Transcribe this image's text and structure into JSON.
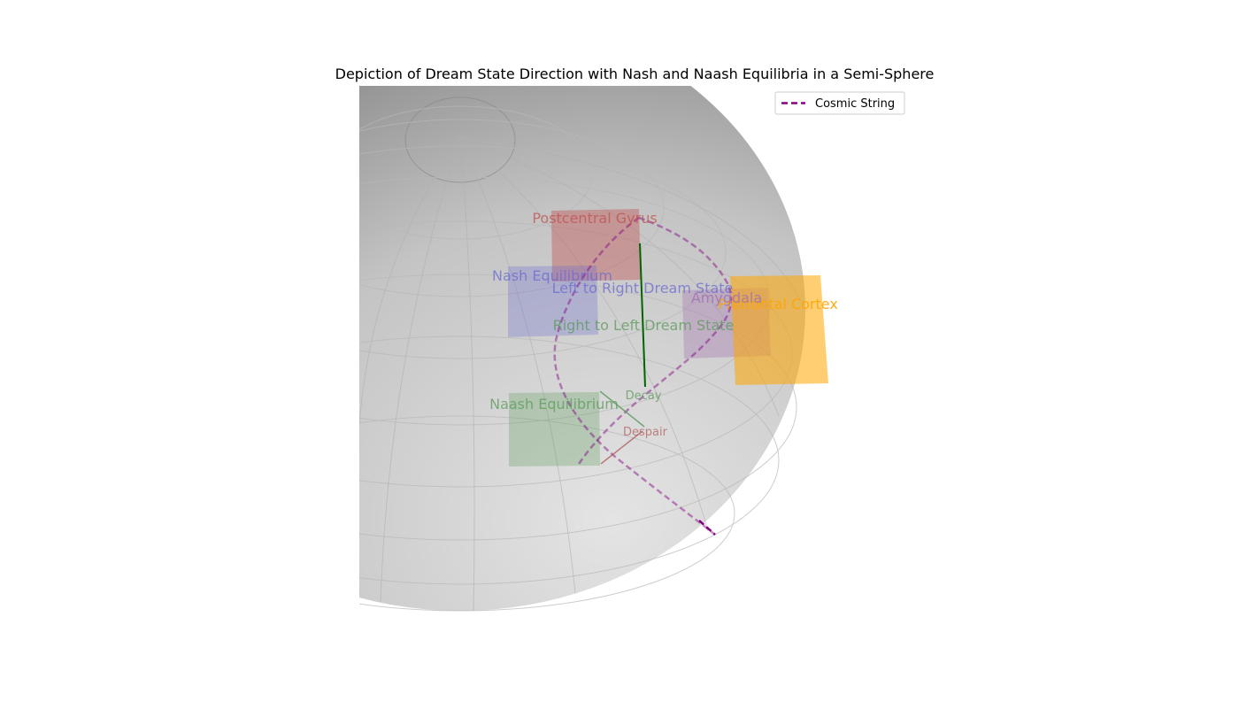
{
  "chart_data": {
    "type": "3d-surface",
    "title": "Depiction of Dream State Direction with Nash and Naash Equilibria in a Semi-Sphere",
    "surface": {
      "shape": "semi-sphere",
      "color": "#c8c8c8"
    },
    "regions": [
      {
        "name": "Postcentral Gyrus",
        "color": "#c0504d"
      },
      {
        "name": "Nash Equilibrium",
        "color": "#6a6ad0"
      },
      {
        "name": "Amygdala",
        "color": "#a070b0"
      },
      {
        "name": "Prefrontal Cortex",
        "color": "#ffa500"
      },
      {
        "name": "Naash Equilibrium",
        "color": "#5a9a5a"
      }
    ],
    "flows": [
      {
        "name": "Left to Right Dream State",
        "color": "#6a6ad0"
      },
      {
        "name": "Right to Left Dream State",
        "color": "#5a9a5a"
      }
    ],
    "states": [
      {
        "name": "Decay",
        "color": "#5a9a5a"
      },
      {
        "name": "Despair",
        "color": "#b06060"
      }
    ],
    "vector": {
      "color": "#006400"
    },
    "legend": {
      "placement": "top-right",
      "entries": [
        {
          "label": "Cosmic String",
          "color": "#800080",
          "style": "dashed"
        }
      ]
    }
  }
}
